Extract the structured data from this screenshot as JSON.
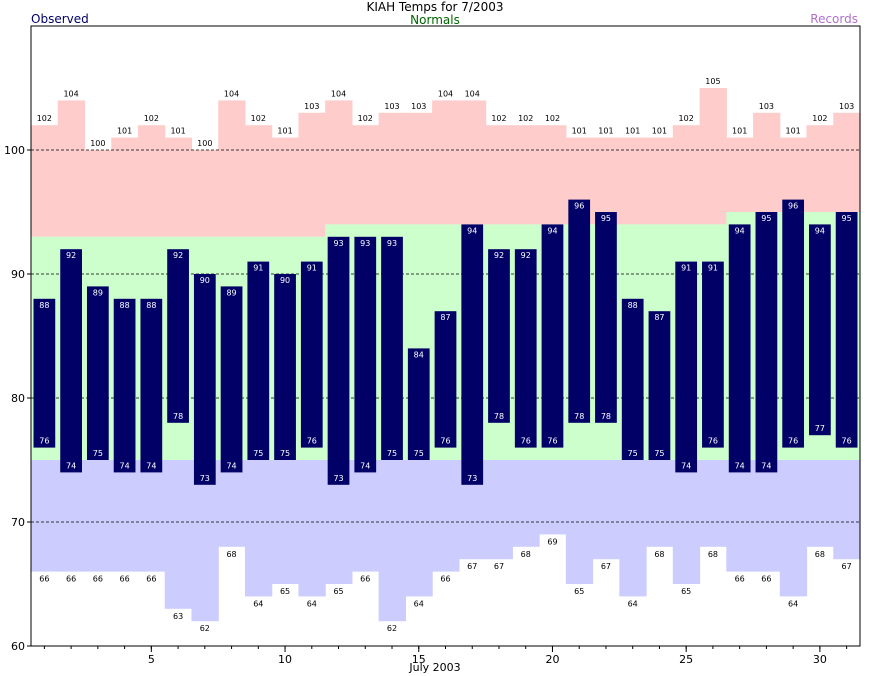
{
  "chart_data": {
    "type": "bar",
    "title": "KIAH Temps for 7/2003",
    "xlabel": "July 2003",
    "ylabel": "",
    "ylim": [
      60,
      110
    ],
    "xlim": [
      0.5,
      31.5
    ],
    "yticks": [
      60,
      70,
      80,
      90,
      100
    ],
    "xticks": [
      5,
      10,
      15,
      20,
      25,
      30
    ],
    "grid_dashed_at": [
      70,
      80,
      90,
      100
    ],
    "legend": {
      "left": "Observed",
      "center": "Normals",
      "right": "Records"
    },
    "colors": {
      "observed": "#000066",
      "normals_band": "#ccffcc",
      "record_high_band": "#ffcccc",
      "record_low_band": "#ccccff",
      "normals_label": "#006400",
      "records_label": "#b070c8"
    },
    "days": [
      1,
      2,
      3,
      4,
      5,
      6,
      7,
      8,
      9,
      10,
      11,
      12,
      13,
      14,
      15,
      16,
      17,
      18,
      19,
      20,
      21,
      22,
      23,
      24,
      25,
      26,
      27,
      28,
      29,
      30,
      31
    ],
    "series": [
      {
        "name": "Observed High",
        "values": [
          88,
          92,
          89,
          88,
          88,
          92,
          90,
          89,
          91,
          90,
          91,
          93,
          93,
          93,
          84,
          87,
          94,
          92,
          92,
          94,
          96,
          95,
          88,
          87,
          91,
          91,
          94,
          95,
          96,
          94,
          95
        ]
      },
      {
        "name": "Observed Low",
        "values": [
          76,
          74,
          75,
          74,
          74,
          78,
          73,
          74,
          75,
          75,
          76,
          73,
          74,
          75,
          75,
          76,
          73,
          78,
          76,
          76,
          78,
          78,
          75,
          75,
          74,
          76,
          74,
          74,
          76,
          77,
          76
        ]
      },
      {
        "name": "Record High",
        "values": [
          102,
          104,
          100,
          101,
          102,
          101,
          100,
          104,
          102,
          101,
          103,
          104,
          102,
          103,
          103,
          104,
          104,
          102,
          102,
          102,
          101,
          101,
          101,
          101,
          102,
          105,
          101,
          103,
          101,
          102,
          103
        ]
      },
      {
        "name": "Record Low",
        "values": [
          66,
          66,
          66,
          66,
          66,
          63,
          62,
          68,
          64,
          65,
          64,
          65,
          66,
          62,
          64,
          66,
          67,
          67,
          68,
          69,
          65,
          67,
          64,
          68,
          65,
          68,
          66,
          66,
          64,
          68,
          67
        ]
      },
      {
        "name": "Normal High",
        "values": [
          93,
          93,
          93,
          93,
          93,
          93,
          93,
          93,
          93,
          93,
          93,
          94,
          94,
          94,
          94,
          94,
          94,
          94,
          94,
          94,
          94,
          94,
          94,
          94,
          94,
          94,
          95,
          95,
          95,
          95,
          95
        ]
      },
      {
        "name": "Normal Low",
        "values": [
          75,
          75,
          75,
          75,
          75,
          75,
          75,
          75,
          75,
          75,
          75,
          75,
          75,
          75,
          75,
          75,
          75,
          75,
          75,
          75,
          75,
          75,
          75,
          75,
          75,
          75,
          75,
          75,
          75,
          75,
          75
        ]
      }
    ]
  }
}
